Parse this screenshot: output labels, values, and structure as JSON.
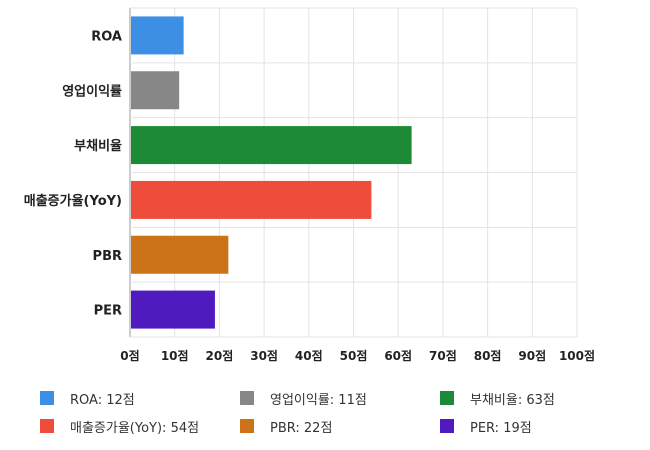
{
  "chart_data": {
    "type": "bar",
    "orientation": "horizontal",
    "categories": [
      "ROA",
      "영업이익률",
      "부채비율",
      "매출증가율(YoY)",
      "PBR",
      "PER"
    ],
    "values": [
      12,
      11,
      63,
      54,
      22,
      19
    ],
    "colors": [
      "#3d8fe6",
      "#878787",
      "#1d8a37",
      "#ee4d3b",
      "#cc7319",
      "#4f1bbf"
    ],
    "xlim": [
      0,
      100
    ],
    "ticks": [
      0,
      10,
      20,
      30,
      40,
      50,
      60,
      70,
      80,
      90,
      100
    ],
    "tick_labels": [
      "0점",
      "10점",
      "20점",
      "30점",
      "40점",
      "50점",
      "60점",
      "70점",
      "80점",
      "90점",
      "100점"
    ],
    "grid": true,
    "legend_position": "bottom",
    "legend": [
      {
        "label": "ROA: 12점",
        "color": "#3d8fe6"
      },
      {
        "label": "영업이익률: 11점",
        "color": "#878787"
      },
      {
        "label": "부채비율: 63점",
        "color": "#1d8a37"
      },
      {
        "label": "매출증가율(YoY): 54점",
        "color": "#ee4d3b"
      },
      {
        "label": "PBR: 22점",
        "color": "#cc7319"
      },
      {
        "label": "PER: 19점",
        "color": "#4f1bbf"
      }
    ]
  }
}
